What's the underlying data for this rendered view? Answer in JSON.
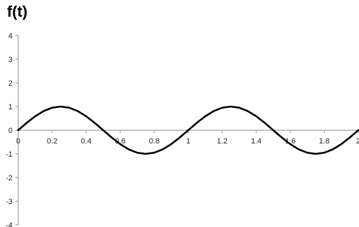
{
  "chart_data": {
    "type": "line",
    "title": "f(t)",
    "xlabel": "",
    "ylabel": "",
    "xlim": [
      0,
      2
    ],
    "ylim": [
      -4,
      4
    ],
    "x_ticks": [
      "0",
      "0.2",
      "0.4",
      "0.6",
      "0.8",
      "1",
      "1.2",
      "1.4",
      "1.6",
      "1.8",
      "2"
    ],
    "y_ticks": [
      "4",
      "3",
      "2",
      "1",
      "0",
      "-1",
      "-2",
      "-3",
      "-4"
    ],
    "grid": false,
    "legend": "none",
    "series": [
      {
        "color": "#000000",
        "x": [
          0,
          0.05,
          0.1,
          0.15,
          0.2,
          0.25,
          0.3,
          0.35,
          0.4,
          0.45,
          0.5,
          0.55,
          0.6,
          0.65,
          0.7,
          0.75,
          0.8,
          0.85,
          0.9,
          0.95,
          1.0,
          1.05,
          1.1,
          1.15,
          1.2,
          1.25,
          1.3,
          1.35,
          1.4,
          1.45,
          1.5,
          1.55,
          1.6,
          1.65,
          1.7,
          1.75,
          1.8,
          1.85,
          1.9,
          1.95,
          2.0
        ],
        "y": [
          0,
          0.309,
          0.588,
          0.809,
          0.951,
          1.0,
          0.951,
          0.809,
          0.588,
          0.309,
          0,
          -0.309,
          -0.588,
          -0.809,
          -0.951,
          -1.0,
          -0.951,
          -0.809,
          -0.588,
          -0.309,
          0,
          0.309,
          0.588,
          0.809,
          0.951,
          1.0,
          0.951,
          0.809,
          0.588,
          0.309,
          0,
          -0.309,
          -0.588,
          -0.809,
          -0.951,
          -1.0,
          -0.951,
          -0.809,
          -0.588,
          -0.309,
          0
        ]
      }
    ]
  }
}
